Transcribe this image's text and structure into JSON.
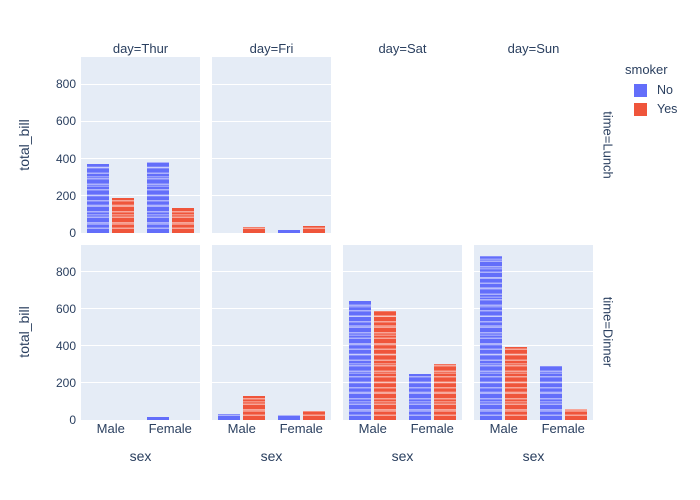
{
  "colors": {
    "series_no": "#636EFA",
    "series_yes": "#EF553B",
    "panel_background": "#E5ECF6",
    "gridline": "#FFFFFF",
    "text": "#2A3F5F"
  },
  "legend": {
    "title": "smoker",
    "items": [
      {
        "label": "No",
        "color": "#636EFA"
      },
      {
        "label": "Yes",
        "color": "#EF553B"
      }
    ]
  },
  "chart_data": {
    "type": "bar",
    "facet_col_field": "day",
    "facet_row_field": "time",
    "cols": [
      "Thur",
      "Fri",
      "Sat",
      "Sun"
    ],
    "rows": [
      "Lunch",
      "Dinner"
    ],
    "col_titles": [
      "day=Thur",
      "day=Fri",
      "day=Sat",
      "day=Sun"
    ],
    "row_titles": [
      "time=Lunch",
      "time=Dinner"
    ],
    "categories": [
      "Male",
      "Female"
    ],
    "series": [
      "No",
      "Yes"
    ],
    "series_colors": {
      "No": "#636EFA",
      "Yes": "#EF553B"
    },
    "xlabel": "sex",
    "ylabel": "total_bill",
    "y_ticks": [
      0,
      200,
      400,
      600,
      800
    ],
    "ylim": [
      0,
      945
    ],
    "grid": true,
    "legend_position": "top-right",
    "bar_texture": "stacked individual records shown as light horizontal stripes",
    "panels": [
      {
        "row": "Lunch",
        "col": "Thur",
        "has_panel": true,
        "bars": {
          "Male": {
            "No": 370,
            "Yes": 190
          },
          "Female": {
            "No": 380,
            "Yes": 132
          }
        }
      },
      {
        "row": "Lunch",
        "col": "Fri",
        "has_panel": true,
        "bars": {
          "Male": {
            "No": 0,
            "Yes": 30
          },
          "Female": {
            "No": 14,
            "Yes": 36
          }
        }
      },
      {
        "row": "Lunch",
        "col": "Sat",
        "has_panel": false,
        "bars": {}
      },
      {
        "row": "Lunch",
        "col": "Sun",
        "has_panel": false,
        "bars": {}
      },
      {
        "row": "Dinner",
        "col": "Thur",
        "has_panel": true,
        "bars": {
          "Male": {
            "No": 0,
            "Yes": 0
          },
          "Female": {
            "No": 18,
            "Yes": 0
          }
        }
      },
      {
        "row": "Dinner",
        "col": "Fri",
        "has_panel": true,
        "bars": {
          "Male": {
            "No": 35,
            "Yes": 130
          },
          "Female": {
            "No": 25,
            "Yes": 50
          }
        }
      },
      {
        "row": "Dinner",
        "col": "Sat",
        "has_panel": true,
        "bars": {
          "Male": {
            "No": 640,
            "Yes": 590
          },
          "Female": {
            "No": 247,
            "Yes": 305
          }
        }
      },
      {
        "row": "Dinner",
        "col": "Sun",
        "has_panel": true,
        "bars": {
          "Male": {
            "No": 885,
            "Yes": 392
          },
          "Female": {
            "No": 290,
            "Yes": 60
          }
        }
      }
    ]
  }
}
